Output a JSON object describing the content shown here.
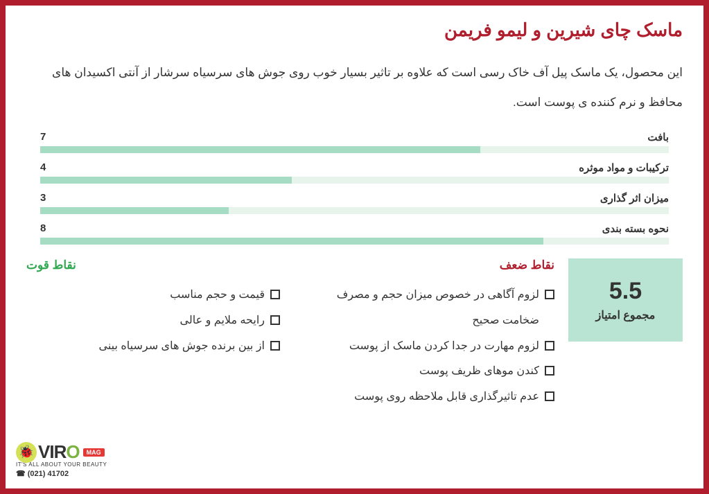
{
  "title": "ماسک چای شیرین و لیمو فریمن",
  "description": "این محصول، یک ماسک پیل آف خاک رسی است که علاوه بر تاثیر بسیار خوب روی جوش های سرسیاه سرشار از آنتی اکسیدان های محافظ و نرم کننده ی پوست است.",
  "ratings": [
    {
      "label": "بافت",
      "value": "7",
      "percent": 70
    },
    {
      "label": "ترکیبات و مواد موثره",
      "value": "4",
      "percent": 40
    },
    {
      "label": "میزان اثر گذاری",
      "value": "3",
      "percent": 30
    },
    {
      "label": "نحوه بسته بندی",
      "value": "8",
      "percent": 80
    }
  ],
  "score": {
    "value": "5.5",
    "label": "مجموع امتیاز"
  },
  "weaknesses": {
    "header": "نقاط ضعف",
    "items": [
      "لزوم آگاهی در خصوص میزان حجم و مصرف ضخامت صحیح",
      "لزوم مهارت در جدا کردن ماسک از پوست",
      "کندن موهای ظریف پوست",
      "عدم تاثیرگذاری قابل ملاحظه روی پوست"
    ]
  },
  "strengths": {
    "header": "نقاط قوت",
    "items": [
      "قیمت و حجم مناسب",
      "رایحه ملایم و عالی",
      "از بین برنده جوش های سرسیاه بینی"
    ]
  },
  "logo": {
    "brand_v": "VIR",
    "brand_o": "O",
    "mag": "MAG",
    "tagline": "IT'S ALL ABOUT YOUR BEAUTY",
    "phone": "☎ (021) 41702"
  },
  "colors": {
    "border": "#b01e2e",
    "bar_bg": "#e6f4ec",
    "bar_fill": "#a7dcc4",
    "score_bg": "#b9e4d3",
    "weak": "#b01e2e",
    "strong": "#2fa84f"
  }
}
